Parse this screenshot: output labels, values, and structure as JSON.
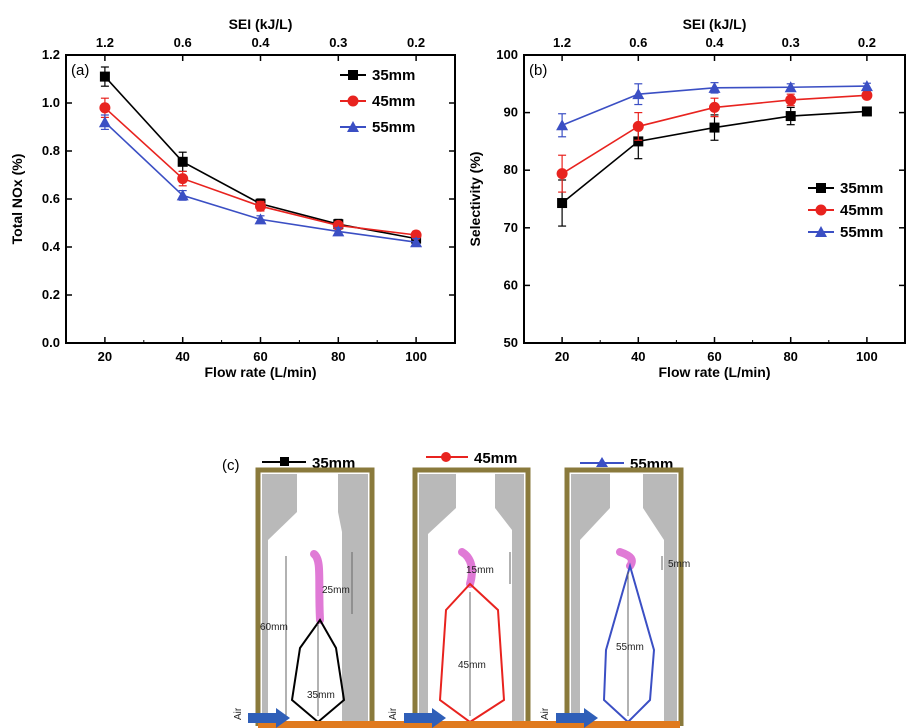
{
  "chart_data": [
    {
      "type": "line",
      "panel_label": "(a)",
      "xlabel": "Flow rate (L/min)",
      "ylabel": "Total NOx (%)",
      "top_axis_label": "SEI (kJ/L)",
      "top_ticks": [
        "1.2",
        "0.6",
        "0.4",
        "0.3",
        "0.2"
      ],
      "x": [
        20,
        40,
        60,
        80,
        100
      ],
      "xlim": [
        10,
        110
      ],
      "ylim": [
        0.0,
        1.2
      ],
      "x_ticks": [
        "20",
        "40",
        "60",
        "80",
        "100"
      ],
      "y_ticks": [
        "0.0",
        "0.2",
        "0.4",
        "0.6",
        "0.8",
        "1.0",
        "1.2"
      ],
      "legend_position": "top-right",
      "series": [
        {
          "name": "35mm",
          "marker": "square",
          "color": "#000000",
          "values": [
            1.11,
            0.755,
            0.58,
            0.495,
            0.435
          ],
          "errors": [
            0.04,
            0.04,
            0.02,
            0.02,
            0.02
          ]
        },
        {
          "name": "45mm",
          "marker": "circle",
          "color": "#e8231f",
          "values": [
            0.98,
            0.685,
            0.57,
            0.49,
            0.45
          ],
          "errors": [
            0.04,
            0.03,
            0.02,
            0.015,
            0.015
          ]
        },
        {
          "name": "55mm",
          "marker": "triangle",
          "color": "#3b4fc4",
          "values": [
            0.92,
            0.615,
            0.515,
            0.465,
            0.42
          ],
          "errors": [
            0.03,
            0.02,
            0.015,
            0.015,
            0.015
          ]
        }
      ]
    },
    {
      "type": "line",
      "panel_label": "(b)",
      "xlabel": "Flow rate (L/min)",
      "ylabel": "Selectivity (%)",
      "top_axis_label": "SEI (kJ/L)",
      "top_ticks": [
        "1.2",
        "0.6",
        "0.4",
        "0.3",
        "0.2"
      ],
      "x": [
        20,
        40,
        60,
        80,
        100
      ],
      "xlim": [
        10,
        110
      ],
      "ylim": [
        50,
        100
      ],
      "x_ticks": [
        "20",
        "40",
        "60",
        "80",
        "100"
      ],
      "y_ticks": [
        "50",
        "60",
        "70",
        "80",
        "90",
        "100"
      ],
      "legend_position": "center-right",
      "series": [
        {
          "name": "35mm",
          "marker": "square",
          "color": "#000000",
          "values": [
            74.3,
            85.0,
            87.4,
            89.4,
            90.2
          ],
          "errors": [
            4.0,
            3.0,
            2.2,
            1.5,
            0.6
          ]
        },
        {
          "name": "45mm",
          "marker": "circle",
          "color": "#e8231f",
          "values": [
            79.4,
            87.6,
            90.9,
            92.2,
            93.0
          ],
          "errors": [
            3.2,
            2.4,
            1.6,
            1.0,
            0.6
          ]
        },
        {
          "name": "55mm",
          "marker": "triangle",
          "color": "#3b4fc4",
          "values": [
            87.8,
            93.2,
            94.3,
            94.4,
            94.6
          ],
          "errors": [
            2.0,
            1.8,
            0.9,
            0.6,
            0.5
          ]
        }
      ]
    }
  ],
  "diagram": {
    "panel_label": "(c)",
    "reactors": [
      {
        "name": "35mm",
        "color": "#000000",
        "marker": "square",
        "dims": [
          "25mm",
          "60mm",
          "35mm"
        ]
      },
      {
        "name": "45mm",
        "color": "#e8231f",
        "marker": "circle",
        "dims": [
          "15mm",
          "45mm"
        ]
      },
      {
        "name": "55mm",
        "color": "#3b4fc4",
        "marker": "triangle",
        "dims": [
          "5mm",
          "55mm"
        ]
      }
    ],
    "air_label": "Air"
  }
}
